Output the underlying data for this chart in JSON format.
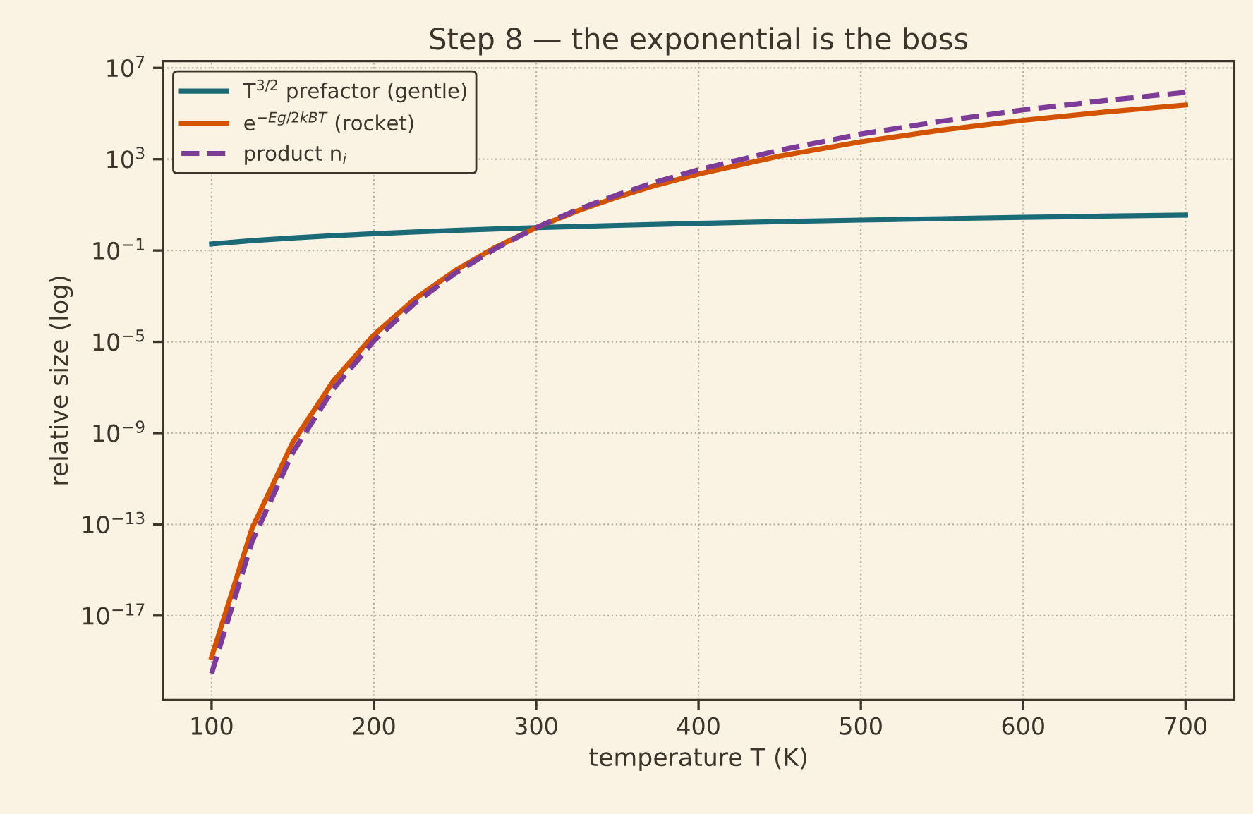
{
  "chart_data": {
    "type": "line",
    "title": "Step 8 — the exponential is the boss",
    "xlabel": "temperature T (K)",
    "ylabel": "relative size (log)",
    "x": [
      100,
      125,
      150,
      175,
      200,
      225,
      250,
      275,
      300,
      325,
      350,
      375,
      400,
      450,
      500,
      550,
      600,
      650,
      700
    ],
    "series": [
      {
        "name": "T$^{3/2}$ prefactor (gentle)",
        "color": "#1b6a78",
        "line_style": "solid",
        "values": [
          0.192,
          0.269,
          0.353,
          0.446,
          0.544,
          0.65,
          0.76,
          0.877,
          1,
          1.127,
          1.26,
          1.4,
          1.54,
          1.84,
          2.15,
          2.48,
          2.83,
          3.19,
          3.56
        ]
      },
      {
        "name": "e$^{−Eg/2kBT}$ (rocket)",
        "color": "#d35400",
        "line_style": "solid",
        "values": [
          1.5e-19,
          6.8e-14,
          3.9e-10,
          1.9e-07,
          2e-05,
          0.00073,
          0.0131,
          0.14,
          1,
          5.3,
          22,
          76,
          225,
          1370,
          5800,
          18900,
          50700,
          117000,
          238000
        ]
      },
      {
        "name": "product n$_{i}$",
        "color": "#7d3c98",
        "line_style": "dashed",
        "values": [
          2.9e-20,
          1.8e-14,
          1.4e-10,
          8.5e-08,
          1.1e-05,
          0.00048,
          0.01,
          0.123,
          1,
          6.0,
          27.8,
          106,
          347,
          2500,
          12600,
          46800,
          145000,
          370000,
          850000
        ]
      }
    ],
    "log": "y",
    "xlim": [
      70,
      730
    ],
    "ylim": [
      2e-21,
      20000000.0
    ],
    "xticks": [
      100,
      200,
      300,
      400,
      500,
      600,
      700
    ],
    "yticks": [
      {
        "value": 1e-17,
        "label": "10$^{−17}$"
      },
      {
        "value": 1e-13,
        "label": "10$^{−13}$"
      },
      {
        "value": 1e-09,
        "label": "10$^{−9}$"
      },
      {
        "value": 1e-05,
        "label": "10$^{−5}$"
      },
      {
        "value": 0.1,
        "label": "10$^{−1}$"
      },
      {
        "value": 1000,
        "label": "10$^{3}$"
      },
      {
        "value": 10000000.0,
        "label": "10$^{7}$"
      }
    ],
    "grid": true,
    "legend": "top left"
  }
}
